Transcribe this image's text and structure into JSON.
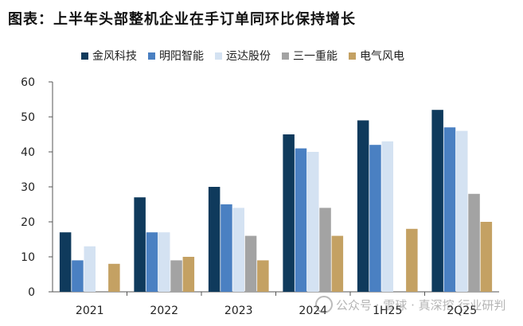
{
  "chart_data": {
    "type": "bar",
    "title": "图表：上半年头部整机企业在手订单同环比保持增长",
    "categories": [
      "2021",
      "2022",
      "2023",
      "2024",
      "1H25",
      "2Q25"
    ],
    "series": [
      {
        "name": "金风科技",
        "color": "#0f3a5c",
        "values": [
          17,
          27,
          30,
          45,
          49,
          52
        ]
      },
      {
        "name": "明阳智能",
        "color": "#4a80c2",
        "values": [
          9,
          17,
          25,
          41,
          42,
          47
        ]
      },
      {
        "name": "运达股份",
        "color": "#d4e2f2",
        "values": [
          13,
          17,
          24,
          40,
          43,
          46
        ]
      },
      {
        "name": "三一重能",
        "color": "#a3a3a3",
        "values": [
          0,
          9,
          16,
          24,
          0,
          28
        ]
      },
      {
        "name": "电气风电",
        "color": "#c4a163",
        "values": [
          8,
          10,
          9,
          16,
          18,
          20
        ]
      }
    ],
    "ylim": [
      0,
      60
    ],
    "yticks": [
      0,
      10,
      20,
      30,
      40,
      50,
      60
    ],
    "grid": false,
    "legend": "top"
  },
  "watermark": {
    "text": "公众号 · 雪球 · 真深挖 行业研判"
  }
}
